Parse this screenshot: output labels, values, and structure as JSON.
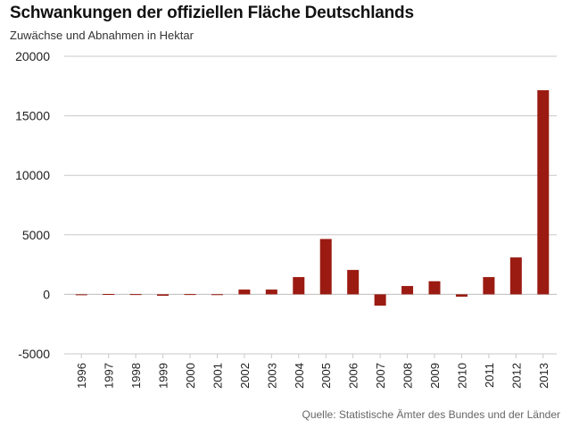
{
  "title": "Schwankungen der offiziellen Fläche Deutschlands",
  "subtitle": "Zuwächse und Abnahmen in Hektar",
  "source": "Quelle: Statistische Ämter des Bundes und der Länder",
  "colors": {
    "bar": "#9b1b12",
    "grid": "#c8c8c8",
    "zero": "#bdbdbd"
  },
  "chart_data": {
    "type": "bar",
    "title": "Schwankungen der offiziellen Fläche Deutschlands",
    "subtitle": "Zuwächse und Abnahmen in Hektar",
    "xlabel": "",
    "ylabel": "",
    "categories": [
      "1996",
      "1997",
      "1998",
      "1999",
      "2000",
      "2001",
      "2002",
      "2003",
      "2004",
      "2005",
      "2006",
      "2007",
      "2008",
      "2009",
      "2010",
      "2011",
      "2012",
      "2013"
    ],
    "values": [
      -20,
      30,
      20,
      -120,
      20,
      10,
      400,
      400,
      1450,
      4650,
      2050,
      -950,
      700,
      1100,
      -200,
      1450,
      3100,
      17150
    ],
    "ylim": [
      -5000,
      20000
    ],
    "yticks": [
      20000,
      15000,
      10000,
      5000,
      0,
      -5000
    ],
    "grid": true,
    "legend": "none"
  }
}
